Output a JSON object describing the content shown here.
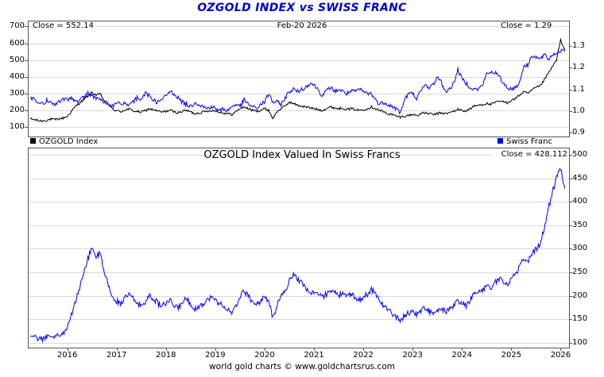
{
  "header": {
    "title": "OZGOLD INDEX vs SWISS FRANC"
  },
  "footer": {
    "caption": "world gold charts © www.goldchartsrus.com"
  },
  "colors": {
    "title": "#0000cc",
    "ozgold": "#000000",
    "swiss_franc": "#0000ee",
    "grid": "#d9d9d9",
    "border": "#555555"
  },
  "chart_data": [
    {
      "type": "line",
      "panel": "top",
      "annotations": {
        "close_left": "Close = 552.14",
        "date": "Feb-20  2026",
        "close_right": "Close = 1.29"
      },
      "legend": [
        {
          "label": "OZGOLD Index",
          "color": "#000000"
        },
        {
          "label": "Swiss Franc",
          "color": "#0000ee"
        }
      ],
      "x_start": 2015.25,
      "xlim": [
        2015.2,
        2026.17
      ],
      "x_ticks": [
        2016,
        2017,
        2018,
        2019,
        2020,
        2021,
        2022,
        2023,
        2024,
        2025,
        2026
      ],
      "grid_axis": "left",
      "axes": {
        "left": {
          "ticks": [
            100,
            200,
            300,
            400,
            500,
            600,
            700
          ],
          "lim": [
            45,
            735
          ],
          "decimals": 0
        },
        "right": {
          "ticks": [
            0.9,
            1.0,
            1.1,
            1.2,
            1.3
          ],
          "lim": [
            0.88,
            1.42
          ],
          "decimals": 1
        }
      },
      "series": [
        {
          "name": "OZGOLD Index",
          "axis": "left",
          "color": "#000000",
          "jitter": 7,
          "values": [
            150,
            145,
            140,
            138,
            142,
            148,
            145,
            150,
            155,
            165,
            195,
            225,
            245,
            265,
            285,
            308,
            292,
            298,
            258,
            238,
            208,
            198,
            193,
            203,
            208,
            198,
            193,
            190,
            200,
            210,
            204,
            196,
            190,
            196,
            201,
            191,
            186,
            196,
            201,
            191,
            181,
            186,
            191,
            196,
            201,
            196,
            191,
            186,
            181,
            176,
            192,
            212,
            221,
            211,
            201,
            196,
            201,
            211,
            201,
            152,
            192,
            212,
            226,
            251,
            241,
            231,
            226,
            221,
            216,
            211,
            206,
            201,
            211,
            221,
            216,
            211,
            216,
            206,
            211,
            206,
            201,
            206,
            211,
            221,
            211,
            201,
            191,
            181,
            176,
            166,
            161,
            166,
            171,
            176,
            171,
            181,
            186,
            181,
            176,
            181,
            186,
            181,
            186,
            196,
            206,
            201,
            196,
            211,
            226,
            231,
            236,
            241,
            236,
            246,
            256,
            251,
            246,
            261,
            271,
            291,
            311,
            301,
            321,
            336,
            346,
            381,
            421,
            461,
            501,
            618,
            552.14
          ]
        },
        {
          "name": "Swiss Franc",
          "axis": "right",
          "color": "#0000ee",
          "jitter": 0.01,
          "values": [
            1.06,
            1.05,
            1.04,
            1.03,
            1.05,
            1.04,
            1.03,
            1.04,
            1.05,
            1.05,
            1.06,
            1.04,
            1.05,
            1.06,
            1.08,
            1.07,
            1.06,
            1.05,
            1.04,
            1.03,
            1.02,
            1.03,
            1.04,
            1.03,
            1.02,
            1.04,
            1.06,
            1.05,
            1.08,
            1.07,
            1.05,
            1.04,
            1.05,
            1.07,
            1.09,
            1.08,
            1.06,
            1.04,
            1.03,
            1.02,
            1.04,
            1.03,
            1.02,
            1.01,
            1.02,
            1.01,
            1.0,
            1.01,
            1.0,
            1.02,
            1.03,
            1.02,
            1.05,
            1.03,
            1.02,
            1.01,
            1.03,
            1.04,
            1.08,
            1.04,
            1.04,
            1.03,
            1.06,
            1.09,
            1.1,
            1.09,
            1.1,
            1.11,
            1.13,
            1.12,
            1.1,
            1.07,
            1.09,
            1.11,
            1.09,
            1.1,
            1.09,
            1.08,
            1.09,
            1.09,
            1.1,
            1.09,
            1.08,
            1.08,
            1.05,
            1.03,
            1.04,
            1.03,
            1.02,
            1.01,
            0.99,
            1.05,
            1.08,
            1.08,
            1.06,
            1.09,
            1.12,
            1.11,
            1.12,
            1.16,
            1.13,
            1.09,
            1.1,
            1.13,
            1.19,
            1.15,
            1.13,
            1.11,
            1.1,
            1.1,
            1.12,
            1.17,
            1.18,
            1.18,
            1.16,
            1.13,
            1.11,
            1.1,
            1.11,
            1.13,
            1.21,
            1.21,
            1.26,
            1.25,
            1.24,
            1.26,
            1.24,
            1.26,
            1.27,
            1.28,
            1.29
          ]
        }
      ]
    },
    {
      "type": "line",
      "panel": "bottom",
      "title": "OZGOLD Index Valued In Swiss Francs",
      "annotations": {
        "close_right": "Close = 428.112"
      },
      "x_start": 2015.25,
      "xlim": [
        2015.2,
        2026.17
      ],
      "x_ticks": [
        2016,
        2017,
        2018,
        2019,
        2020,
        2021,
        2022,
        2023,
        2024,
        2025,
        2026
      ],
      "grid_axis": "right",
      "axes": {
        "right": {
          "ticks": [
            100,
            150,
            200,
            250,
            300,
            350,
            400,
            450,
            500
          ],
          "lim": [
            90,
            515
          ],
          "decimals": 0
        }
      },
      "series": [
        {
          "name": "OZGOLD Index in Swiss Francs",
          "axis": "right",
          "color": "#0000ee",
          "jitter": 6,
          "values": [
            115,
            112,
            110,
            108,
            112,
            116,
            114,
            118,
            122,
            132,
            158,
            188,
            218,
            248,
            278,
            305,
            283,
            290,
            248,
            224,
            194,
            189,
            184,
            194,
            204,
            194,
            184,
            179,
            189,
            199,
            194,
            184,
            179,
            184,
            189,
            179,
            174,
            187,
            194,
            184,
            171,
            177,
            184,
            191,
            197,
            191,
            184,
            179,
            171,
            161,
            177,
            199,
            211,
            199,
            189,
            181,
            189,
            199,
            187,
            152,
            179,
            199,
            211,
            231,
            247,
            237,
            227,
            219,
            204,
            209,
            204,
            197,
            204,
            214,
            207,
            199,
            209,
            197,
            204,
            197,
            191,
            197,
            204,
            214,
            204,
            191,
            179,
            169,
            164,
            154,
            149,
            157,
            164,
            167,
            161,
            169,
            174,
            167,
            161,
            167,
            171,
            167,
            171,
            179,
            189,
            184,
            179,
            191,
            204,
            209,
            214,
            221,
            217,
            227,
            237,
            231,
            224,
            237,
            247,
            261,
            281,
            271,
            291,
            299,
            309,
            344,
            384,
            419,
            454,
            472,
            428.112
          ]
        }
      ]
    }
  ]
}
